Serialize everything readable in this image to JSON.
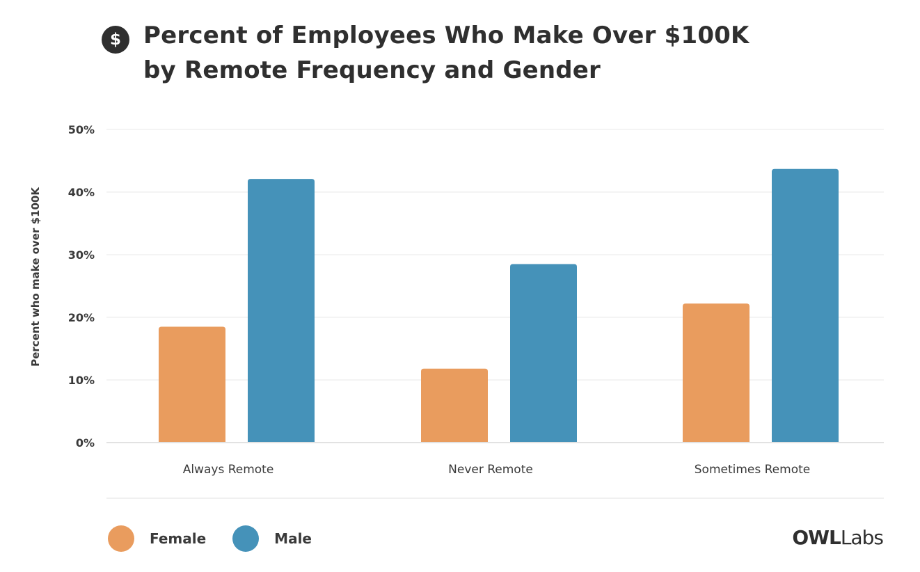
{
  "title": {
    "icon": "dollar-icon",
    "icon_glyph": "$",
    "line1": "Percent of Employees Who Make Over $100K",
    "line2": "by Remote Frequency and Gender"
  },
  "brand": {
    "owl": "OWL",
    "labs": "Labs"
  },
  "colors": {
    "female": "#e99c5e",
    "male": "#4592b9",
    "grid": "#f0f0f0",
    "baseline": "#e2e2e2",
    "text": "#3a3a3a"
  },
  "chart_data": {
    "type": "bar",
    "title": "Percent of Employees Who Make Over $100K by Remote Frequency and Gender",
    "xlabel": "",
    "ylabel": "Percent who make over $100K",
    "categories": [
      "Always Remote",
      "Never Remote",
      "Sometimes Remote"
    ],
    "series": [
      {
        "name": "Female",
        "values": [
          18.5,
          11.8,
          22.2
        ]
      },
      {
        "name": "Male",
        "values": [
          42.1,
          28.5,
          43.7
        ]
      }
    ],
    "ylim": [
      0,
      50
    ],
    "yticks": [
      0,
      10,
      20,
      30,
      40,
      50
    ],
    "ytick_labels": [
      "0%",
      "10%",
      "20%",
      "30%",
      "40%",
      "50%"
    ],
    "grid": true,
    "legend": "bottom-left"
  }
}
